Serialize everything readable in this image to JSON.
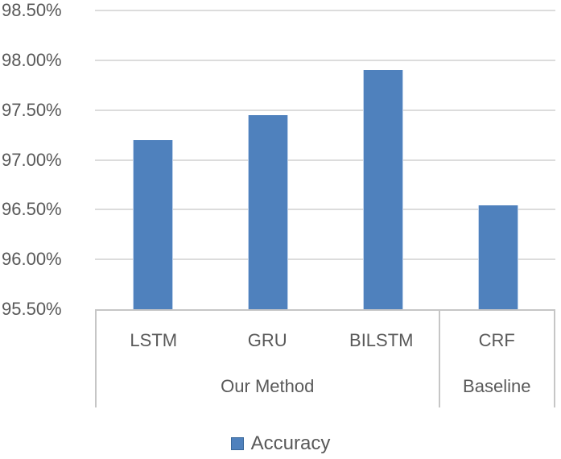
{
  "chart_data": {
    "type": "bar",
    "categories": [
      "LSTM",
      "GRU",
      "BILSTM",
      "CRF"
    ],
    "groups": [
      {
        "label": "Our Method",
        "span": 3
      },
      {
        "label": "Baseline",
        "span": 1
      }
    ],
    "series": [
      {
        "name": "Accuracy",
        "values": [
          97.2,
          97.45,
          97.9,
          96.54
        ]
      }
    ],
    "ylabel": "",
    "xlabel": "",
    "ylim": [
      95.5,
      98.5
    ],
    "ytick_step": 0.5,
    "ytick_labels": [
      "98.50%",
      "98.00%",
      "97.50%",
      "97.00%",
      "96.50%",
      "96.00%",
      "95.50%"
    ],
    "grid": true,
    "legend_position": "bottom"
  },
  "legend": {
    "label": "Accuracy"
  },
  "colors": {
    "accent": "#4F81BD",
    "grid": "#DCDCDC",
    "axis": "#C6C6C6",
    "text": "#595959"
  }
}
